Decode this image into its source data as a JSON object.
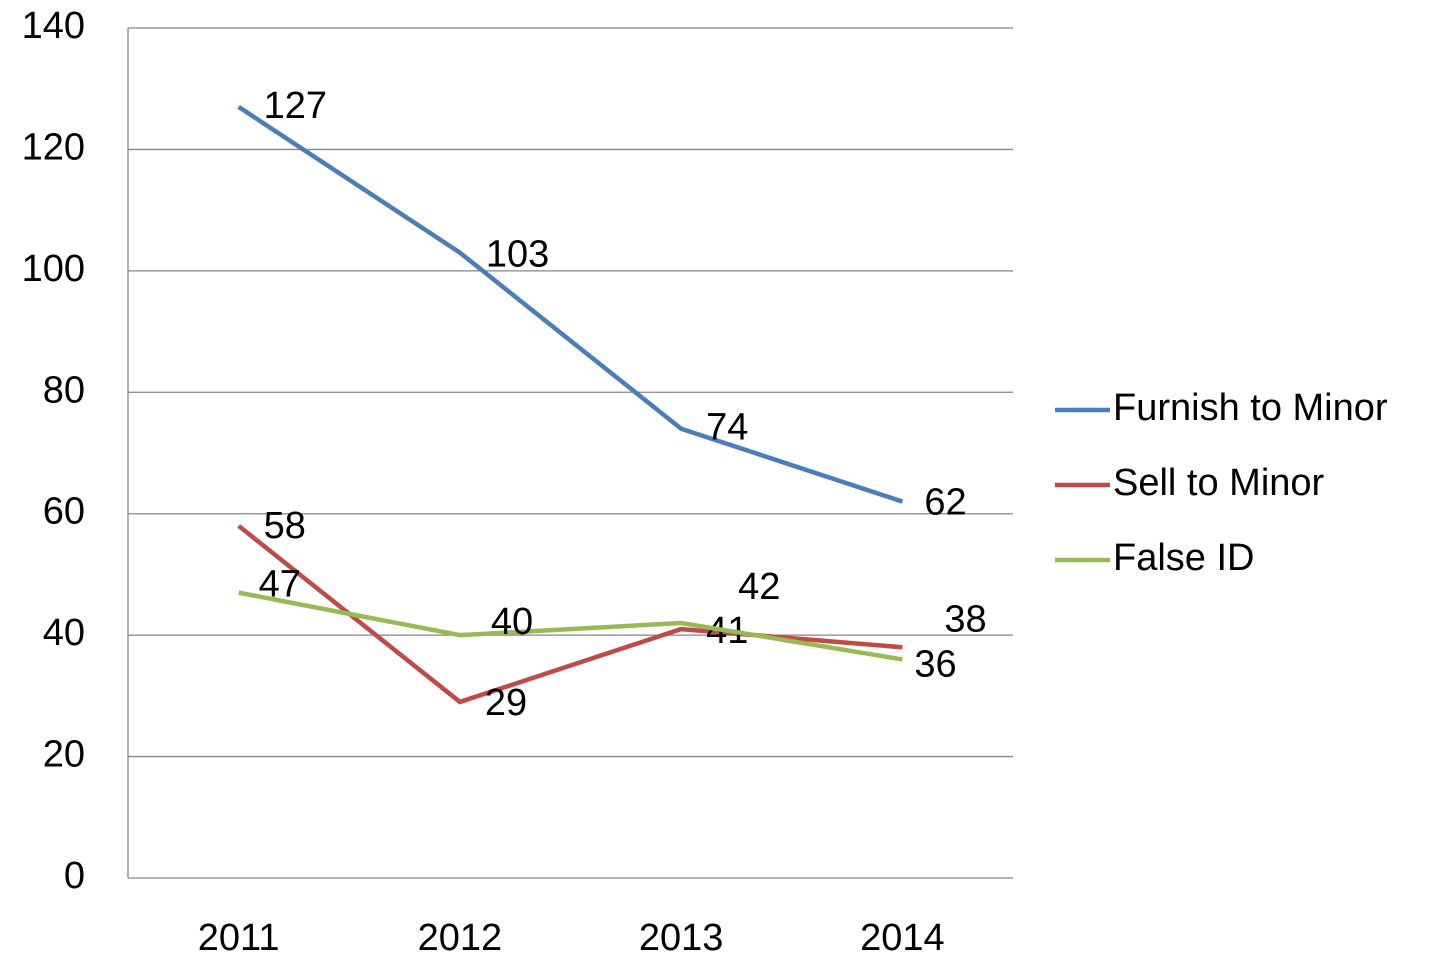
{
  "chart_data": {
    "type": "line",
    "categories": [
      "2011",
      "2012",
      "2013",
      "2014"
    ],
    "series": [
      {
        "name": "Furnish to Minor",
        "color": "#4a7ebb",
        "values": [
          127,
          103,
          74,
          62
        ]
      },
      {
        "name": "Sell to Minor",
        "color": "#be4b48",
        "values": [
          58,
          29,
          41,
          38
        ]
      },
      {
        "name": "False ID",
        "color": "#98b954",
        "values": [
          47,
          40,
          42,
          36
        ]
      }
    ],
    "ylim": [
      0,
      140
    ],
    "yticks": [
      0,
      20,
      40,
      60,
      80,
      100,
      120,
      140
    ],
    "grid": true,
    "legend": "right"
  }
}
